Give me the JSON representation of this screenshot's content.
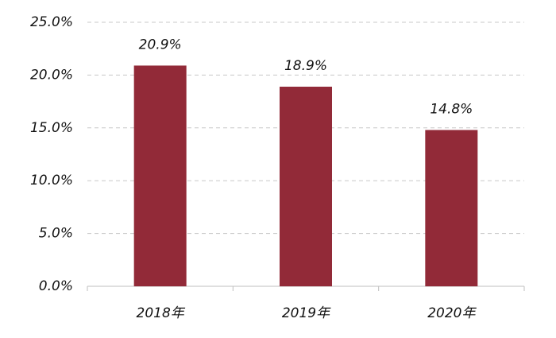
{
  "chart_data": {
    "type": "bar",
    "categories": [
      "2018年",
      "2019年",
      "2020年"
    ],
    "values": [
      20.9,
      18.9,
      14.8
    ],
    "value_labels": [
      "20.9%",
      "18.9%",
      "14.8%"
    ],
    "color": "#922a38",
    "ylim": [
      0,
      25
    ],
    "yticks": [
      {
        "value": 0,
        "label": "0.0%"
      },
      {
        "value": 5,
        "label": "5.0%"
      },
      {
        "value": 10,
        "label": "10.0%"
      },
      {
        "value": 15,
        "label": "15.0%"
      },
      {
        "value": 20,
        "label": "20.0%"
      },
      {
        "value": 25,
        "label": "25.0%"
      }
    ],
    "grid": true
  }
}
